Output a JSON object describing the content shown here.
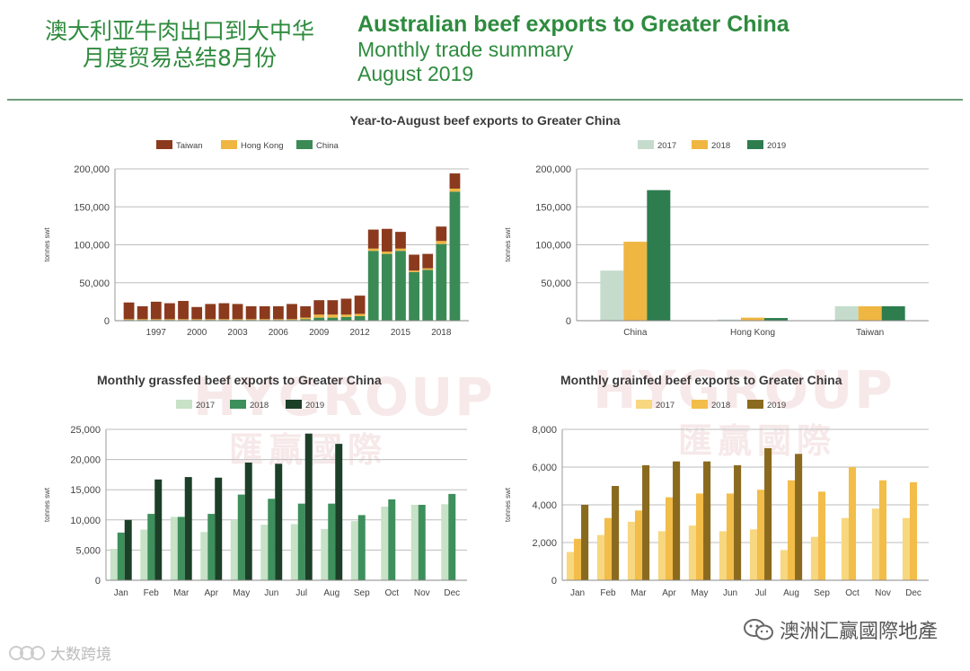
{
  "header": {
    "title_cn_line1": "澳大利亚牛肉出口到大中华",
    "title_cn_line2": "月度贸易总结8月份",
    "title_en": "Australian beef exports to Greater China",
    "subtitle_en": "Monthly trade summary",
    "date_en": "August 2019"
  },
  "section_title": "Year-to-August beef exports to Greater China",
  "watermark": {
    "brand": "HYGROUP",
    "brand_cn": "匯贏國際"
  },
  "footer": {
    "wechat_account": "澳洲汇赢國際地產",
    "source_label": "大数跨境"
  },
  "colors": {
    "taiwan": "#8b3a1e",
    "hongkong": "#f0b642",
    "china": "#3a8a55",
    "y2017": "#c5dccd",
    "y2018": "#f0b642",
    "y2019": "#2e7d4f",
    "grass2017": "#c7e2c7",
    "grass2018": "#3d8f5c",
    "grass2019": "#1c3f27",
    "grain2017": "#f7d77f",
    "grain2018": "#f3bd4a",
    "grain2019": "#8a6a1e"
  },
  "chart_data": [
    {
      "id": "annual",
      "type": "bar",
      "stacked": true,
      "title": "",
      "ylabel": "tonnes swt",
      "ylim": [
        0,
        200000
      ],
      "yticks": [
        0,
        50000,
        100000,
        150000,
        200000
      ],
      "ytick_labels": [
        "0",
        "50,000",
        "100,000",
        "150,000",
        "200,000"
      ],
      "categories": [
        "1995",
        "1996",
        "1997",
        "1998",
        "1999",
        "2000",
        "2001",
        "2002",
        "2003",
        "2004",
        "2005",
        "2006",
        "2007",
        "2008",
        "2009",
        "2010",
        "2011",
        "2012",
        "2013",
        "2014",
        "2015",
        "2016",
        "2017",
        "2018",
        "2019"
      ],
      "xtick_labels": [
        "1997",
        "2000",
        "2003",
        "2006",
        "2009",
        "2012",
        "2015",
        "2018"
      ],
      "legend": [
        "Taiwan",
        "Hong Kong",
        "China"
      ],
      "legend_position": "top",
      "series": [
        {
          "name": "China",
          "values": [
            1000,
            1000,
            1000,
            1000,
            1000,
            1000,
            1000,
            1000,
            1000,
            1000,
            1000,
            1000,
            1000,
            2000,
            4000,
            4000,
            5000,
            6000,
            92000,
            88000,
            92000,
            64000,
            67000,
            101000,
            170000
          ]
        },
        {
          "name": "Hong Kong",
          "values": [
            1000,
            1000,
            1000,
            1000,
            1000,
            1000,
            1000,
            1000,
            1000,
            1000,
            1000,
            1000,
            1000,
            2000,
            4000,
            4000,
            3000,
            3000,
            3000,
            3000,
            3000,
            2000,
            2000,
            4000,
            4000
          ]
        },
        {
          "name": "Taiwan",
          "values": [
            22000,
            17000,
            23000,
            21000,
            24000,
            16000,
            20000,
            21000,
            20000,
            17000,
            17000,
            17000,
            20000,
            15000,
            19000,
            19000,
            21000,
            24000,
            25000,
            30000,
            22000,
            21000,
            19000,
            19000,
            20000
          ]
        }
      ]
    },
    {
      "id": "byyear",
      "type": "bar",
      "title": "",
      "ylabel": "tonnes swt",
      "ylim": [
        0,
        200000
      ],
      "yticks": [
        0,
        50000,
        100000,
        150000,
        200000
      ],
      "ytick_labels": [
        "0",
        "50,000",
        "100,000",
        "150,000",
        "200,000"
      ],
      "categories": [
        "China",
        "Hong Kong",
        "Taiwan"
      ],
      "legend": [
        "2017",
        "2018",
        "2019"
      ],
      "legend_position": "top",
      "series": [
        {
          "name": "2017",
          "values": [
            66000,
            1500,
            19000
          ]
        },
        {
          "name": "2018",
          "values": [
            104000,
            4000,
            19000
          ]
        },
        {
          "name": "2019",
          "values": [
            172000,
            3500,
            19000
          ]
        }
      ]
    },
    {
      "id": "grassfed",
      "type": "bar",
      "title": "Monthly grassfed beef exports to Greater China",
      "ylabel": "tonnes swt",
      "ylim": [
        0,
        25000
      ],
      "yticks": [
        0,
        5000,
        10000,
        15000,
        20000,
        25000
      ],
      "ytick_labels": [
        "0",
        "5,000",
        "10,000",
        "15,000",
        "20,000",
        "25,000"
      ],
      "categories": [
        "Jan",
        "Feb",
        "Mar",
        "Apr",
        "May",
        "Jun",
        "Jul",
        "Aug",
        "Sep",
        "Oct",
        "Nov",
        "Dec"
      ],
      "legend": [
        "2017",
        "2018",
        "2019"
      ],
      "legend_position": "top",
      "series": [
        {
          "name": "2017",
          "values": [
            5200,
            8400,
            10500,
            8000,
            10000,
            9200,
            9300,
            8500,
            9800,
            12200,
            12500,
            12600
          ]
        },
        {
          "name": "2018",
          "values": [
            7900,
            11000,
            10500,
            11000,
            14200,
            13500,
            12700,
            12700,
            10800,
            13400,
            12500,
            14300
          ]
        },
        {
          "name": "2019",
          "values": [
            10000,
            16700,
            17100,
            17000,
            19500,
            19300,
            24300,
            22600,
            null,
            null,
            null,
            null
          ]
        }
      ]
    },
    {
      "id": "grainfed",
      "type": "bar",
      "title": "Monthly grainfed beef exports to Greater China",
      "ylabel": "tonnes swt",
      "ylim": [
        0,
        8000
      ],
      "yticks": [
        0,
        2000,
        4000,
        6000,
        8000
      ],
      "ytick_labels": [
        "0",
        "2,000",
        "4,000",
        "6,000",
        "8,000"
      ],
      "categories": [
        "Jan",
        "Feb",
        "Mar",
        "Apr",
        "May",
        "Jun",
        "Jul",
        "Aug",
        "Sep",
        "Oct",
        "Nov",
        "Dec"
      ],
      "legend": [
        "2017",
        "2018",
        "2019"
      ],
      "legend_position": "top",
      "series": [
        {
          "name": "2017",
          "values": [
            1500,
            2400,
            3100,
            2600,
            2900,
            2600,
            2700,
            1600,
            2300,
            3300,
            3800,
            3300
          ]
        },
        {
          "name": "2018",
          "values": [
            2200,
            3300,
            3700,
            4400,
            4600,
            4600,
            4800,
            5300,
            4700,
            6000,
            5300,
            5200
          ]
        },
        {
          "name": "2019",
          "values": [
            4000,
            5000,
            6100,
            6300,
            6300,
            6100,
            7000,
            6700,
            null,
            null,
            null,
            null
          ]
        }
      ]
    }
  ]
}
